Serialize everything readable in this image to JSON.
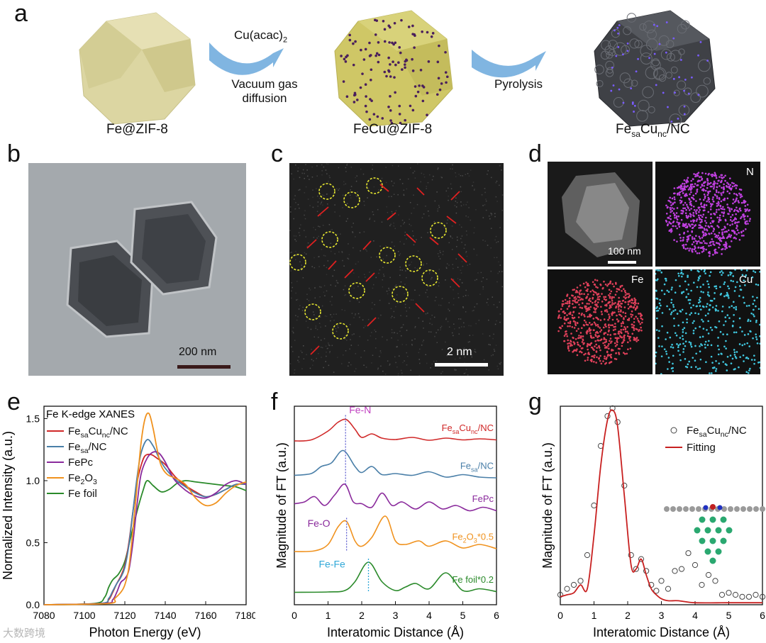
{
  "panel_a": {
    "letter": "a",
    "step1_top": "Cu(acac)",
    "step1_top_sub": "2",
    "step1_bottom_1": "Vacuum gas",
    "step1_bottom_2": "diffusion",
    "step2": "Pyrolysis",
    "cap1": "Fe@ZIF-8",
    "cap2": "FeCu@ZIF-8",
    "cap3_a": "Fe",
    "cap3_sub1": "sa",
    "cap3_b": "Cu",
    "cap3_sub2": "nc",
    "cap3_c": "/NC",
    "colors": {
      "zif": "#dcd6a2",
      "fecu": "#cfc766",
      "dots": "#4a1f5c",
      "carbon": "#3f4146",
      "arrow": "#6aa8dc"
    }
  },
  "panel_b": {
    "letter": "b",
    "scale": "200 nm"
  },
  "panel_c": {
    "letter": "c",
    "scale": "2 nm"
  },
  "panel_d": {
    "letter": "d",
    "scale": "100 nm",
    "map_n": "N",
    "map_fe": "Fe",
    "map_cu": "Cu",
    "colors": {
      "n": "#c040e0",
      "fe": "#e0405a",
      "cu": "#40c8e0"
    }
  },
  "panel_e": {
    "letter": "e"
  },
  "panel_f": {
    "letter": "f"
  },
  "panel_g": {
    "letter": "g"
  },
  "watermark": "大数跨境",
  "chart_data": [
    {
      "type": "line",
      "id": "e",
      "title": "Fe K-edge XANES",
      "xlabel": "Photon Energy (eV)",
      "ylabel": "Normalized Intensity (a.u.)",
      "xlim": [
        7080,
        7180
      ],
      "ylim": [
        0.0,
        1.6
      ],
      "xticks": [
        "7080",
        "7100",
        "7120",
        "7140",
        "7160",
        "7180"
      ],
      "yticks": [
        "0.0",
        "0.5",
        "1.0",
        "1.5"
      ],
      "legend": [
        {
          "name": "Fe",
          "sub": "sa",
          "name2": "Cu",
          "sub2": "nc",
          "name3": "/NC",
          "color": "#d02828"
        },
        {
          "name": "Fe",
          "sub": "sa",
          "name2": "/NC",
          "sub2": "",
          "name3": "",
          "color": "#4a7fa8"
        },
        {
          "name": "FePc",
          "sub": "",
          "name2": "",
          "sub2": "",
          "name3": "",
          "color": "#8a2a9c"
        },
        {
          "name": "Fe",
          "sub": "2",
          "name2": "O",
          "sub2": "3",
          "name3": "",
          "color": "#f0921e"
        },
        {
          "name": "Fe foil",
          "sub": "",
          "name2": "",
          "sub2": "",
          "name3": "",
          "color": "#2a8a2a"
        }
      ],
      "series": [
        {
          "color": "#2a8a2a",
          "x": [
            7080,
            7105,
            7110,
            7112,
            7114,
            7117,
            7120,
            7123,
            7126,
            7129,
            7131,
            7134,
            7138,
            7142,
            7146,
            7150,
            7155,
            7160,
            7165,
            7170,
            7175,
            7180
          ],
          "y": [
            0,
            0.01,
            0.06,
            0.14,
            0.2,
            0.25,
            0.35,
            0.55,
            0.75,
            0.92,
            1.0,
            0.96,
            0.91,
            0.93,
            0.98,
            1.0,
            0.99,
            0.98,
            0.97,
            0.96,
            0.95,
            0.92
          ]
        },
        {
          "color": "#d02828",
          "x": [
            7080,
            7108,
            7112,
            7114,
            7116,
            7118,
            7120,
            7122,
            7124,
            7126,
            7128,
            7130,
            7133,
            7136,
            7140,
            7145,
            7150,
            7155,
            7160,
            7165,
            7170,
            7175,
            7180
          ],
          "y": [
            0,
            0.01,
            0.04,
            0.1,
            0.17,
            0.23,
            0.32,
            0.5,
            0.75,
            0.98,
            1.12,
            1.2,
            1.21,
            1.18,
            1.13,
            1.03,
            0.96,
            0.91,
            0.87,
            0.89,
            0.93,
            0.97,
            0.97
          ]
        },
        {
          "color": "#4a7fa8",
          "x": [
            7080,
            7108,
            7112,
            7114,
            7116,
            7118,
            7120,
            7122,
            7124,
            7126,
            7128,
            7131,
            7134,
            7137,
            7140,
            7145,
            7150,
            7155,
            7160,
            7165,
            7170,
            7175,
            7180
          ],
          "y": [
            0,
            0.01,
            0.05,
            0.11,
            0.17,
            0.22,
            0.3,
            0.48,
            0.75,
            1.02,
            1.22,
            1.33,
            1.28,
            1.18,
            1.1,
            1.01,
            0.95,
            0.9,
            0.87,
            0.89,
            0.93,
            0.97,
            0.97
          ]
        },
        {
          "color": "#8a2a9c",
          "x": [
            7080,
            7110,
            7114,
            7116,
            7118,
            7120,
            7122,
            7124,
            7126,
            7128,
            7131,
            7134,
            7137,
            7140,
            7144,
            7148,
            7152,
            7156,
            7160,
            7165,
            7170,
            7175,
            7180
          ],
          "y": [
            0,
            0.01,
            0.04,
            0.1,
            0.18,
            0.21,
            0.28,
            0.5,
            0.8,
            1.05,
            1.18,
            1.23,
            1.22,
            1.15,
            1.02,
            0.95,
            0.9,
            0.87,
            0.86,
            0.9,
            0.97,
            1.0,
            0.97
          ]
        },
        {
          "color": "#f0921e",
          "x": [
            7080,
            7112,
            7115,
            7118,
            7120,
            7122,
            7124,
            7126,
            7128,
            7130,
            7132,
            7134,
            7136,
            7138,
            7141,
            7145,
            7150,
            7155,
            7160,
            7165,
            7170,
            7175,
            7180
          ],
          "y": [
            0,
            0.01,
            0.05,
            0.1,
            0.16,
            0.3,
            0.6,
            0.95,
            1.3,
            1.5,
            1.54,
            1.42,
            1.25,
            1.12,
            1.05,
            1.02,
            0.97,
            0.86,
            0.8,
            0.82,
            0.9,
            0.96,
            0.99
          ]
        }
      ]
    },
    {
      "type": "line",
      "id": "f",
      "xlabel": "Interatomic Distance  (Å)",
      "ylabel": "Magnitude of FT (a.u.)",
      "xlim": [
        0,
        6
      ],
      "xticks": [
        "0",
        "1",
        "2",
        "3",
        "4",
        "5",
        "6"
      ],
      "peak_labels": [
        {
          "text": "Fe-N",
          "color": "#c040c0",
          "x": 1.52
        },
        {
          "text": "Fe-O",
          "color": "#8a2a9c",
          "x": 1.55
        },
        {
          "text": "Fe-Fe",
          "color": "#30a8d8",
          "x": 2.2
        }
      ],
      "series": [
        {
          "label": "FesaCunc/NC",
          "text_a": "Fe",
          "sub_a": "sa",
          "text_b": "Cu",
          "sub_b": "nc",
          "text_c": "/NC",
          "color": "#d02828",
          "offset": 4.6,
          "x": [
            0,
            0.5,
            1.0,
            1.3,
            1.55,
            1.8,
            2.0,
            2.3,
            2.6,
            3.0,
            3.5,
            4.0,
            4.5,
            5.0,
            5.5,
            6.0
          ],
          "y": [
            0.02,
            0.05,
            0.3,
            0.55,
            0.62,
            0.35,
            0.12,
            0.22,
            0.1,
            0.06,
            0.12,
            0.04,
            0.1,
            0.05,
            0.08,
            0.05
          ]
        },
        {
          "label": "Fesa/NC",
          "text_a": "Fe",
          "sub_a": "sa",
          "text_b": "/NC",
          "sub_b": "",
          "text_c": "",
          "color": "#4a7fa8",
          "offset": 3.55,
          "x": [
            0,
            0.5,
            0.8,
            1.1,
            1.45,
            1.8,
            2.0,
            2.3,
            2.6,
            3.0,
            3.5,
            4.0,
            4.5,
            5.0,
            5.5,
            6.0
          ],
          "y": [
            0.1,
            0.15,
            0.35,
            0.45,
            0.8,
            0.35,
            0.18,
            0.35,
            0.12,
            0.15,
            0.1,
            0.2,
            0.05,
            0.12,
            0.05,
            0.03
          ]
        },
        {
          "label": "FePc",
          "text_a": "FePc",
          "sub_a": "",
          "text_b": "",
          "sub_b": "",
          "text_c": "",
          "color": "#8a2a9c",
          "offset": 2.6,
          "x": [
            0,
            0.3,
            0.6,
            0.9,
            1.2,
            1.5,
            1.75,
            2.0,
            2.3,
            2.6,
            2.9,
            3.2,
            3.6,
            4.0,
            4.4,
            4.8,
            5.2,
            5.6,
            6.0
          ],
          "y": [
            0.25,
            0.3,
            0.45,
            0.2,
            0.5,
            0.8,
            0.3,
            0.25,
            0.15,
            0.55,
            0.2,
            0.3,
            0.1,
            0.3,
            0.1,
            0.2,
            0.05,
            0.15,
            0.05
          ]
        },
        {
          "label": "Fe2O3*0.5",
          "text_a": "Fe",
          "sub_a": "2",
          "text_b": "O",
          "sub_b": "3",
          "text_c": "*0.5",
          "color": "#f0921e",
          "offset": 1.5,
          "x": [
            0,
            0.6,
            1.0,
            1.3,
            1.55,
            1.8,
            2.0,
            2.3,
            2.7,
            3.0,
            3.3,
            3.7,
            4.0,
            4.5,
            5.0,
            5.5,
            6.0
          ],
          "y": [
            0,
            0.02,
            0.2,
            0.7,
            0.85,
            0.3,
            0.15,
            0.4,
            1.0,
            0.3,
            0.2,
            0.3,
            0.15,
            0.3,
            0.1,
            0.2,
            0.08
          ]
        },
        {
          "label": "Fe foil*0.2",
          "text_a": "Fe foil*0.2",
          "sub_a": "",
          "text_b": "",
          "sub_b": "",
          "text_c": "",
          "color": "#2a8a2a",
          "offset": 0.35,
          "x": [
            0,
            1.0,
            1.5,
            1.8,
            2.2,
            2.6,
            3.0,
            3.3,
            3.6,
            4.0,
            4.5,
            5.0,
            5.5,
            6.0
          ],
          "y": [
            0,
            0.01,
            0.05,
            0.3,
            0.85,
            0.3,
            0.05,
            0.15,
            0.25,
            0.1,
            0.55,
            0.05,
            0.1,
            0.02
          ]
        }
      ]
    },
    {
      "type": "line",
      "id": "g",
      "xlabel": "Interatomic Distance  (Å)",
      "ylabel": "Magnitude of FT (a.u.)",
      "xlim": [
        0,
        6
      ],
      "ylim": [
        0,
        1.0
      ],
      "xticks": [
        "0",
        "1",
        "2",
        "3",
        "4",
        "5",
        "6"
      ],
      "legend": [
        {
          "text_a": "Fe",
          "sub_a": "sa",
          "text_b": "Cu",
          "sub_b": "nc",
          "text_c": "/NC",
          "marker": "circle"
        },
        {
          "text_a": "Fitting",
          "sub_a": "",
          "text_b": "",
          "sub_b": "",
          "text_c": "",
          "marker": "line"
        }
      ],
      "series": [
        {
          "name": "data",
          "style": "circles",
          "color": "#444444",
          "x": [
            0,
            0.2,
            0.4,
            0.6,
            0.8,
            1.0,
            1.2,
            1.4,
            1.55,
            1.7,
            1.9,
            2.1,
            2.25,
            2.4,
            2.55,
            2.7,
            2.85,
            3.0,
            3.2,
            3.4,
            3.6,
            3.8,
            4.0,
            4.2,
            4.4,
            4.6,
            4.8,
            5.0,
            5.2,
            5.4,
            5.6,
            5.8,
            6.0
          ],
          "y": [
            0.05,
            0.08,
            0.1,
            0.12,
            0.25,
            0.5,
            0.8,
            0.95,
            0.99,
            0.92,
            0.6,
            0.25,
            0.18,
            0.23,
            0.17,
            0.1,
            0.07,
            0.12,
            0.08,
            0.17,
            0.18,
            0.26,
            0.2,
            0.1,
            0.15,
            0.12,
            0.05,
            0.06,
            0.05,
            0.04,
            0.04,
            0.05,
            0.04
          ]
        },
        {
          "name": "Fitting",
          "style": "line",
          "color": "#c82020",
          "x": [
            0,
            0.2,
            0.4,
            0.6,
            0.8,
            1.0,
            1.2,
            1.4,
            1.55,
            1.7,
            1.9,
            2.1,
            2.25,
            2.4,
            2.55,
            2.7,
            2.85,
            3.0,
            3.2,
            3.5,
            4.0,
            5.0,
            6.0
          ],
          "y": [
            0.04,
            0.05,
            0.06,
            0.1,
            0.08,
            0.35,
            0.7,
            0.93,
            0.98,
            0.9,
            0.55,
            0.2,
            0.18,
            0.23,
            0.15,
            0.08,
            0.05,
            0.03,
            0.02,
            0.02,
            0.01,
            0.01,
            0.01
          ]
        }
      ]
    }
  ]
}
